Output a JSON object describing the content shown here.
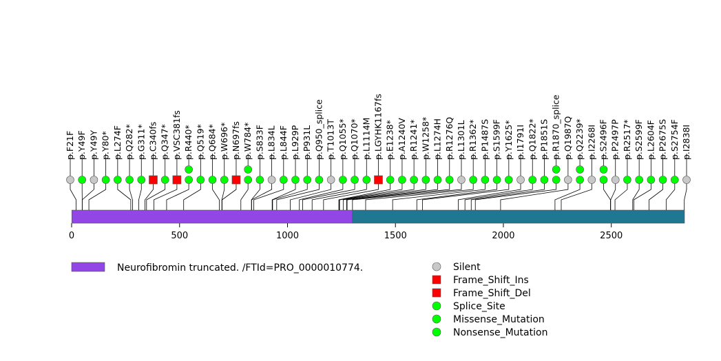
{
  "chart_data": {
    "type": "lollipop",
    "protein_length": 2839,
    "xlim": [
      0,
      2839
    ],
    "x_ticks": [
      0,
      500,
      1000,
      1500,
      2000,
      2500
    ],
    "domains": [
      {
        "label": "Neurofibromin truncated. /FTId=PRO_0000010774.",
        "start": 1,
        "end": 1300,
        "color": "#9346e6"
      },
      {
        "label": "",
        "start": 1301,
        "end": 2839,
        "color": "#1f7792"
      }
    ],
    "mutation_types": [
      {
        "type": "Silent",
        "color": "#c8c8c8",
        "shape": "circle"
      },
      {
        "type": "Frame_Shift_Ins",
        "color": "#ff0000",
        "shape": "square"
      },
      {
        "type": "Frame_Shift_Del",
        "color": "#ff0000",
        "shape": "square"
      },
      {
        "type": "Splice_Site",
        "color": "#00ff00",
        "shape": "circle"
      },
      {
        "type": "Missense_Mutation",
        "color": "#00ff00",
        "shape": "circle"
      },
      {
        "type": "Nonsense_Mutation",
        "color": "#00ff00",
        "shape": "circle"
      }
    ],
    "mutations": [
      {
        "label": "p.F21F",
        "pos": 21,
        "type": "Silent",
        "count": 1
      },
      {
        "label": "p.Y49F",
        "pos": 49,
        "type": "Missense_Mutation",
        "count": 1
      },
      {
        "label": "p.Y49Y",
        "pos": 49,
        "type": "Silent",
        "count": 1
      },
      {
        "label": "p.Y80*",
        "pos": 80,
        "type": "Nonsense_Mutation",
        "count": 1
      },
      {
        "label": "p.L274F",
        "pos": 274,
        "type": "Missense_Mutation",
        "count": 1
      },
      {
        "label": "p.Q282*",
        "pos": 282,
        "type": "Nonsense_Mutation",
        "count": 1
      },
      {
        "label": "p.G311*",
        "pos": 311,
        "type": "Nonsense_Mutation",
        "count": 1
      },
      {
        "label": "p.C340fs",
        "pos": 340,
        "type": "Frame_Shift_Del",
        "count": 1
      },
      {
        "label": "p.Q347*",
        "pos": 347,
        "type": "Nonsense_Mutation",
        "count": 1
      },
      {
        "label": "p.VSC381fs",
        "pos": 381,
        "type": "Frame_Shift_Del",
        "count": 1
      },
      {
        "label": "p.R440*",
        "pos": 440,
        "type": "Nonsense_Mutation",
        "count": 2
      },
      {
        "label": "p.Q519*",
        "pos": 519,
        "type": "Nonsense_Mutation",
        "count": 1
      },
      {
        "label": "p.Q684*",
        "pos": 684,
        "type": "Nonsense_Mutation",
        "count": 1
      },
      {
        "label": "p.W696*",
        "pos": 696,
        "type": "Nonsense_Mutation",
        "count": 1
      },
      {
        "label": "p.N697fs",
        "pos": 697,
        "type": "Frame_Shift_Ins",
        "count": 1
      },
      {
        "label": "p.W784*",
        "pos": 784,
        "type": "Nonsense_Mutation",
        "count": 2
      },
      {
        "label": "p.S833F",
        "pos": 833,
        "type": "Missense_Mutation",
        "count": 1
      },
      {
        "label": "p.L834L",
        "pos": 834,
        "type": "Silent",
        "count": 1
      },
      {
        "label": "p.L844F",
        "pos": 844,
        "type": "Missense_Mutation",
        "count": 1
      },
      {
        "label": "p.L929P",
        "pos": 929,
        "type": "Missense_Mutation",
        "count": 1
      },
      {
        "label": "p.P931L",
        "pos": 931,
        "type": "Missense_Mutation",
        "count": 1
      },
      {
        "label": "p.Q950_splice",
        "pos": 950,
        "type": "Splice_Site",
        "count": 1
      },
      {
        "label": "p.T1013T",
        "pos": 1013,
        "type": "Silent",
        "count": 1
      },
      {
        "label": "p.Q1055*",
        "pos": 1055,
        "type": "Nonsense_Mutation",
        "count": 1
      },
      {
        "label": "p.Q1070*",
        "pos": 1070,
        "type": "Nonsense_Mutation",
        "count": 1
      },
      {
        "label": "p.L1114M",
        "pos": 1114,
        "type": "Missense_Mutation",
        "count": 1
      },
      {
        "label": "p.LGYHK1167fs",
        "pos": 1167,
        "type": "Frame_Shift_Del",
        "count": 1
      },
      {
        "label": "p.E1238*",
        "pos": 1238,
        "type": "Nonsense_Mutation",
        "count": 1
      },
      {
        "label": "p.A1240V",
        "pos": 1240,
        "type": "Missense_Mutation",
        "count": 1
      },
      {
        "label": "p.R1241*",
        "pos": 1241,
        "type": "Nonsense_Mutation",
        "count": 1
      },
      {
        "label": "p.W1258*",
        "pos": 1258,
        "type": "Nonsense_Mutation",
        "count": 1
      },
      {
        "label": "p.L1274H",
        "pos": 1274,
        "type": "Missense_Mutation",
        "count": 1
      },
      {
        "label": "p.R1276Q",
        "pos": 1276,
        "type": "Missense_Mutation",
        "count": 1
      },
      {
        "label": "p.L1301L",
        "pos": 1301,
        "type": "Silent",
        "count": 1
      },
      {
        "label": "p.R1362*",
        "pos": 1362,
        "type": "Nonsense_Mutation",
        "count": 1
      },
      {
        "label": "p.P1487S",
        "pos": 1487,
        "type": "Missense_Mutation",
        "count": 1
      },
      {
        "label": "p.S1599F",
        "pos": 1599,
        "type": "Missense_Mutation",
        "count": 1
      },
      {
        "label": "p.Y1625*",
        "pos": 1625,
        "type": "Nonsense_Mutation",
        "count": 1
      },
      {
        "label": "p.I1791I",
        "pos": 1791,
        "type": "Silent",
        "count": 1
      },
      {
        "label": "p.Q1822*",
        "pos": 1822,
        "type": "Nonsense_Mutation",
        "count": 1
      },
      {
        "label": "p.P1851S",
        "pos": 1851,
        "type": "Missense_Mutation",
        "count": 1
      },
      {
        "label": "p.R1870_splice",
        "pos": 1870,
        "type": "Splice_Site",
        "count": 2
      },
      {
        "label": "p.Q1987Q",
        "pos": 1987,
        "type": "Silent",
        "count": 1
      },
      {
        "label": "p.Q2239*",
        "pos": 2239,
        "type": "Nonsense_Mutation",
        "count": 2
      },
      {
        "label": "p.I2268I",
        "pos": 2268,
        "type": "Silent",
        "count": 1
      },
      {
        "label": "p.S2496F",
        "pos": 2496,
        "type": "Missense_Mutation",
        "count": 2
      },
      {
        "label": "p.P2497P",
        "pos": 2497,
        "type": "Silent",
        "count": 1
      },
      {
        "label": "p.R2517*",
        "pos": 2517,
        "type": "Nonsense_Mutation",
        "count": 1
      },
      {
        "label": "p.S2599F",
        "pos": 2599,
        "type": "Missense_Mutation",
        "count": 1
      },
      {
        "label": "p.L2604F",
        "pos": 2604,
        "type": "Missense_Mutation",
        "count": 1
      },
      {
        "label": "p.P2675S",
        "pos": 2675,
        "type": "Missense_Mutation",
        "count": 1
      },
      {
        "label": "p.S2754F",
        "pos": 2754,
        "type": "Missense_Mutation",
        "count": 1
      },
      {
        "label": "p.I2838I",
        "pos": 2838,
        "type": "Silent",
        "count": 1
      }
    ]
  }
}
